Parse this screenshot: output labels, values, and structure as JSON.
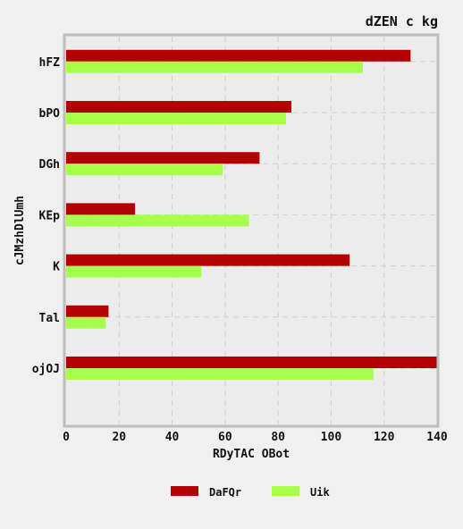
{
  "chart_data": {
    "type": "bar",
    "orientation": "horizontal",
    "title": "dZEN c kg",
    "xlabel": "RDyTAC OBot",
    "ylabel": "cJMzhDlUmh",
    "categories": [
      "hFZ",
      "bPO",
      "DGh",
      "KEp",
      "K",
      "Tal",
      "ojOJ"
    ],
    "series": [
      {
        "name": "DaFQr",
        "color": "#b30000",
        "values": [
          130,
          85,
          73,
          26,
          107,
          16,
          140
        ]
      },
      {
        "name": "Uik",
        "color": "#a6ff4d",
        "values": [
          112,
          83,
          59,
          69,
          51,
          15,
          116
        ]
      }
    ],
    "xlim": [
      0,
      140
    ],
    "xticks": [
      "0",
      "20",
      "40",
      "60",
      "80",
      "100",
      "120",
      "140"
    ],
    "grid": true,
    "legend_position": "bottom"
  }
}
